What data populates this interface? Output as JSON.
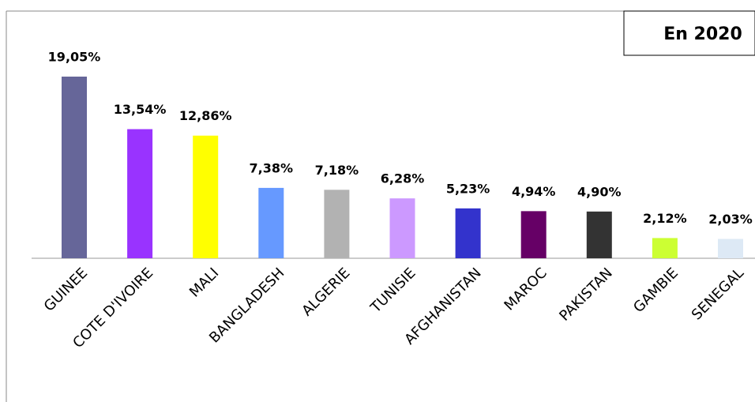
{
  "chart_data": {
    "type": "bar",
    "title": "En 2020",
    "categories": [
      "GUINEE",
      "COTE D'IVOIRE",
      "MALI",
      "BANGLADESH",
      "ALGERIE",
      "TUNISIE",
      "AFGHANISTAN",
      "MAROC",
      "PAKISTAN",
      "GAMBIE",
      "SENEGAL"
    ],
    "values": [
      19.05,
      13.54,
      12.86,
      7.38,
      7.18,
      6.28,
      5.23,
      4.94,
      4.9,
      2.12,
      2.03
    ],
    "value_labels": [
      "19,05%",
      "13,54%",
      "12,86%",
      "7,38%",
      "7,18%",
      "6,28%",
      "5,23%",
      "4,94%",
      "4,90%",
      "2,12%",
      "2,03%"
    ],
    "colors": [
      "#666699",
      "#9933ff",
      "#ffff00",
      "#6699ff",
      "#b2b2b2",
      "#cc99ff",
      "#3333cc",
      "#660066",
      "#333333",
      "#ccff33",
      "#dde9f5"
    ]
  }
}
